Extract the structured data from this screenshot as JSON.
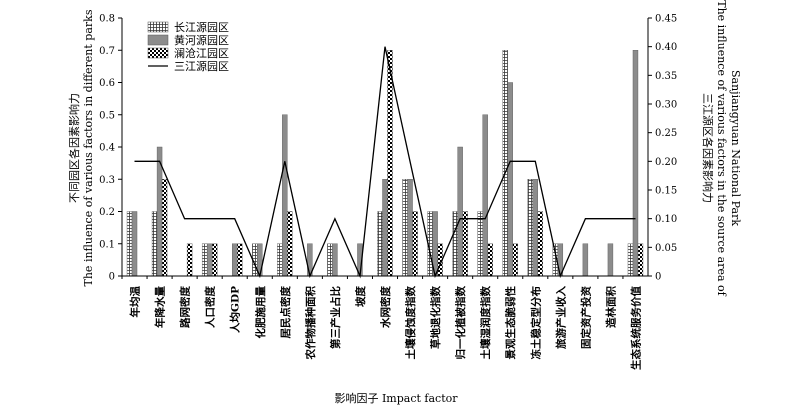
{
  "chart_data": {
    "type": "bar",
    "xlabel": "影响因子 Impact factor",
    "ylabel_left": [
      "不同园区各因素影响力",
      "The influence of various factors in different parks"
    ],
    "ylabel_right": [
      "三江源区各因素影响力",
      "The influence of various factors in the source area of",
      "Sanjiangyuan National Park"
    ],
    "ylim_left": [
      0,
      0.8
    ],
    "ylim_right": [
      0,
      0.45
    ],
    "yticks_left": [
      "0",
      "0.1",
      "0.2",
      "0.3",
      "0.4",
      "0.5",
      "0.6",
      "0.7",
      "0.8"
    ],
    "yticks_right": [
      "0",
      "0.05",
      "0.10",
      "0.15",
      "0.20",
      "0.25",
      "0.30",
      "0.35",
      "0.40",
      "0.45"
    ],
    "legend_position": "top-left",
    "categories": [
      "年均温",
      "年降水量",
      "路网密度",
      "人口密度",
      "人均GDP",
      "化肥施用量",
      "居民点密度",
      "农作物播种面积",
      "第三产业占比",
      "坡度",
      "水网密度",
      "土壤侵蚀度指数",
      "草地退化指数",
      "归一化植被指数",
      "土壤湿润度指数",
      "景观生态脆弱性",
      "冻土稳定型分布",
      "旅游产业收入",
      "固定资产投资",
      "造林面积",
      "生态系统服务价值"
    ],
    "series": [
      {
        "name": "长江源园区",
        "style": "grid-hatch",
        "axis": "left",
        "values": [
          0.2,
          0.2,
          0,
          0.1,
          0,
          0.1,
          0.1,
          0,
          0.1,
          0,
          0.2,
          0.3,
          0.2,
          0.2,
          0.2,
          0.7,
          0.3,
          0.1,
          0,
          0,
          0.1
        ]
      },
      {
        "name": "黄河源园区",
        "style": "gray-solid",
        "axis": "left",
        "values": [
          0.2,
          0.4,
          0,
          0.1,
          0.1,
          0.1,
          0.5,
          0.1,
          0.1,
          0.1,
          0.3,
          0.3,
          0.2,
          0.4,
          0.5,
          0.6,
          0.3,
          0.1,
          0.1,
          0.1,
          0.7
        ]
      },
      {
        "name": "澜沧江园区",
        "style": "checker",
        "axis": "left",
        "values": [
          0,
          0.3,
          0.1,
          0.1,
          0.1,
          0,
          0.2,
          0,
          0,
          0,
          0.7,
          0.2,
          0.1,
          0.2,
          0.1,
          0.1,
          0.2,
          0,
          0,
          0,
          0.1
        ]
      },
      {
        "name": "三江源园区",
        "style": "line",
        "axis": "right",
        "values": [
          0.2,
          0.2,
          0.1,
          0.1,
          0.1,
          0,
          0.2,
          0,
          0.1,
          0,
          0.4,
          0.2,
          0,
          0.1,
          0.1,
          0.2,
          0.2,
          0,
          0.1,
          0.1,
          0.1
        ]
      }
    ]
  }
}
